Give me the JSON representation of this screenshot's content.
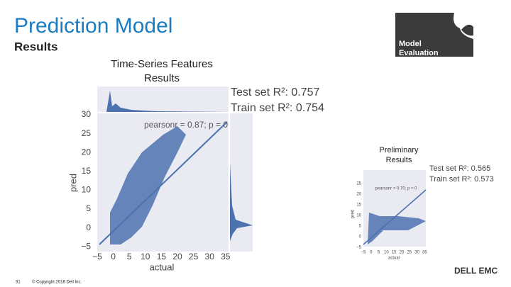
{
  "header": {
    "title": "Prediction Model",
    "subtitle": "Results"
  },
  "badge": {
    "lines": [
      "Model",
      "Evaluation"
    ]
  },
  "main_plot": {
    "caption": [
      "Time-Series Features",
      "Results"
    ],
    "metrics": [
      "Test set R²: 0.757",
      "Train set R²: 0.754"
    ],
    "annotation": "pearsonr = 0.87; p = 0",
    "x_label": "actual",
    "y_label": "pred",
    "xticks": [
      "−5",
      "0",
      "5",
      "10",
      "15",
      "20",
      "25",
      "30",
      "35"
    ],
    "yticks": [
      "30",
      "25",
      "20",
      "15",
      "10",
      "5",
      "0",
      "−5"
    ]
  },
  "small_plot": {
    "caption": [
      "Preliminary",
      "Results"
    ],
    "metrics": [
      "Test set R²: 0.565",
      "Train set R²: 0.573"
    ],
    "annotation": "pearsonr = 0.70; p = 0",
    "x_label": "actual",
    "y_label": "pred",
    "xticks": [
      "−5",
      "0",
      "5",
      "10",
      "15",
      "20",
      "25",
      "30",
      "35"
    ],
    "yticks": [
      "25",
      "20",
      "15",
      "10",
      "5",
      "0",
      "−5"
    ]
  },
  "footer": {
    "page": "31",
    "copyright": "© Copyright 2018 Dell Inc.",
    "logo": "DELL EMC"
  }
}
